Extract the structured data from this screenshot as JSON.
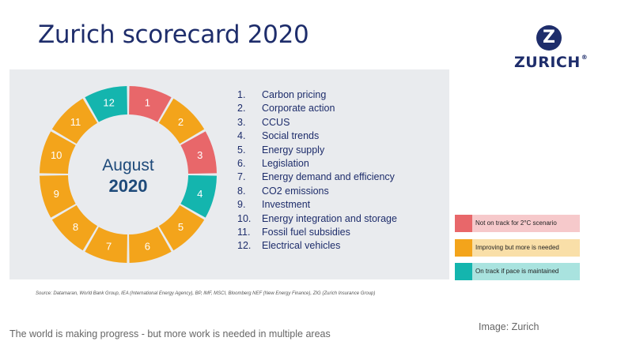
{
  "title": "Zurich scorecard 2020",
  "logo": {
    "mark": "Z",
    "text": "ZURICH",
    "reg": "®"
  },
  "colors": {
    "red": "#e8676a",
    "orange": "#f3a41b",
    "teal": "#14b5ae",
    "red_light": "#f6c9cb",
    "orange_light": "#f9dfa8",
    "teal_light": "#a9e3df",
    "navy": "#1e2d6b",
    "panel": "#e9ebee"
  },
  "ring": {
    "center_month": "August",
    "center_year": "2020",
    "segments": [
      {
        "num": "1",
        "status": "red"
      },
      {
        "num": "2",
        "status": "orange"
      },
      {
        "num": "3",
        "status": "red"
      },
      {
        "num": "4",
        "status": "teal"
      },
      {
        "num": "5",
        "status": "orange"
      },
      {
        "num": "6",
        "status": "orange"
      },
      {
        "num": "7",
        "status": "orange"
      },
      {
        "num": "8",
        "status": "orange"
      },
      {
        "num": "9",
        "status": "orange"
      },
      {
        "num": "10",
        "status": "orange"
      },
      {
        "num": "11",
        "status": "orange"
      },
      {
        "num": "12",
        "status": "teal"
      }
    ]
  },
  "items": [
    {
      "num": "1.",
      "label": "Carbon pricing"
    },
    {
      "num": "2.",
      "label": "Corporate action"
    },
    {
      "num": "3.",
      "label": "CCUS"
    },
    {
      "num": "4.",
      "label": "Social trends"
    },
    {
      "num": "5.",
      "label": "Energy supply"
    },
    {
      "num": "6.",
      "label": "Legislation"
    },
    {
      "num": "7.",
      "label": "Energy demand and efficiency"
    },
    {
      "num": "8.",
      "label": "CO2 emissions"
    },
    {
      "num": "9.",
      "label": "Investment"
    },
    {
      "num": "10.",
      "label": "Energy integration and storage"
    },
    {
      "num": "11.",
      "label": "Fossil fuel subsidies"
    },
    {
      "num": "12.",
      "label": "Electrical vehicles"
    }
  ],
  "legend": [
    {
      "status": "red",
      "label": "Not on track for 2°C scenario"
    },
    {
      "status": "orange",
      "label": "Improving but more is needed"
    },
    {
      "status": "teal",
      "label": "On track if pace is maintained"
    }
  ],
  "source": "Source: Datamaran, World Bank Group, IEA (International Energy Agency), BP, IMF, MSCI, Bloomberg NEF (New Energy Finance), ZIG (Zurich Insurance Group)",
  "caption": "The world is making progress - but more work is needed in multiple areas",
  "credit": "Image: Zurich"
}
